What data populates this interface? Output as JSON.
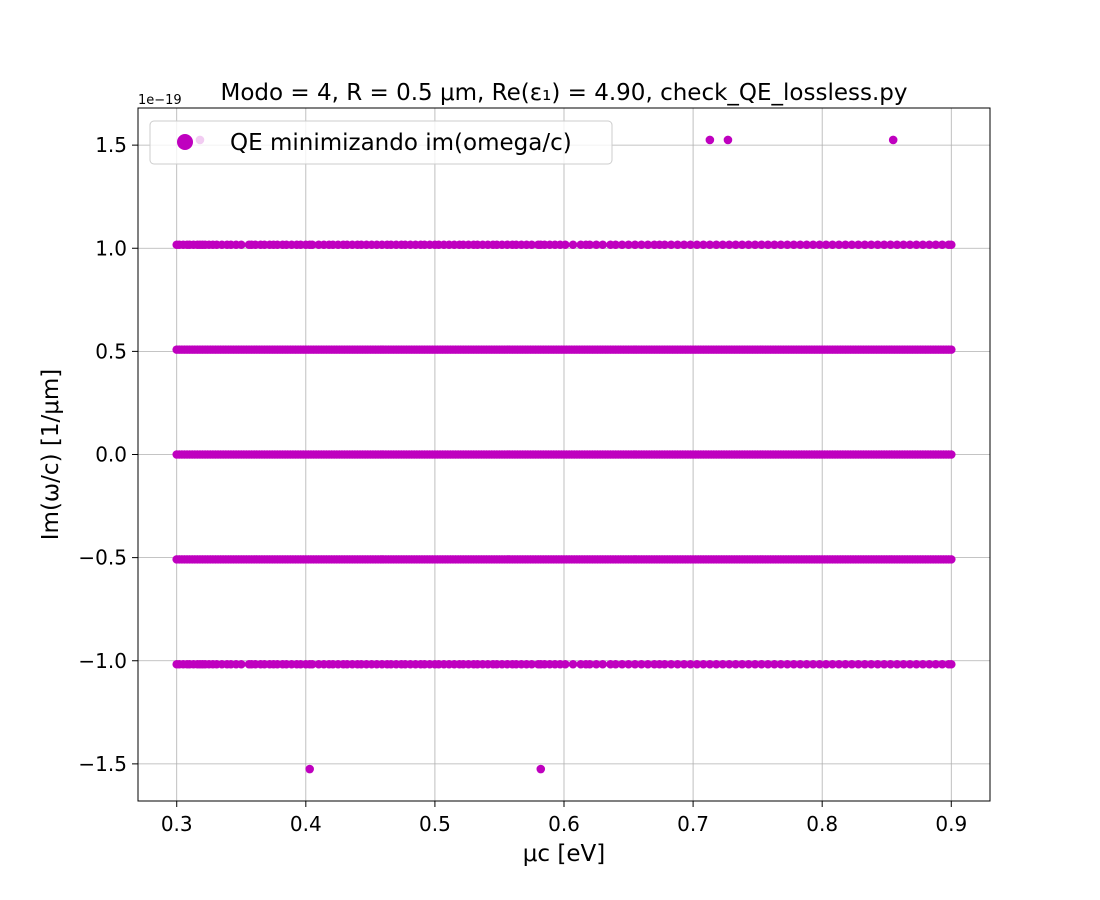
{
  "chart_data": {
    "type": "scatter",
    "title": "Modo = 4, R = 0.5 μm, Re(ε₁) = 4.90, check_QE_lossless.py",
    "xlabel": "μc [eV]",
    "ylabel": "Im(ω/c) [1/μm]",
    "y_offset_text": "1e−19",
    "xlim": [
      0.27,
      0.93
    ],
    "ylim": [
      -1.68,
      1.68
    ],
    "x_ticks": [
      0.3,
      0.4,
      0.5,
      0.6,
      0.7,
      0.8,
      0.9
    ],
    "x_tick_labels": [
      "0.3",
      "0.4",
      "0.5",
      "0.6",
      "0.7",
      "0.8",
      "0.9"
    ],
    "y_ticks": [
      -1.5,
      -1.0,
      -0.5,
      0.0,
      0.5,
      1.0,
      1.5
    ],
    "y_tick_labels": [
      "−1.5",
      "−1.0",
      "−0.5",
      "0.0",
      "0.5",
      "1.0",
      "1.5"
    ],
    "grid": true,
    "legend_position": "top-left",
    "color": "#bf00bf",
    "series": [
      {
        "name": "QE minimizando im(omega/c)",
        "bands": [
          {
            "y": 0.0,
            "x_from": 0.3,
            "x_to": 0.9,
            "continuous": true
          },
          {
            "y": 0.5085,
            "x_from": 0.3,
            "x_to": 0.9,
            "continuous": true
          },
          {
            "y": -0.5085,
            "x_from": 0.3,
            "x_to": 0.9,
            "continuous": true
          },
          {
            "y": 1.017,
            "x": [
              0.3,
              0.302,
              0.305,
              0.308,
              0.31,
              0.313,
              0.316,
              0.318,
              0.32,
              0.322,
              0.325,
              0.328,
              0.331,
              0.335,
              0.339,
              0.342,
              0.346,
              0.35,
              0.356,
              0.358,
              0.361,
              0.365,
              0.368,
              0.372,
              0.375,
              0.378,
              0.382,
              0.385,
              0.389,
              0.393,
              0.396,
              0.4,
              0.403,
              0.405,
              0.41,
              0.414,
              0.418,
              0.421,
              0.425,
              0.429,
              0.432,
              0.436,
              0.44,
              0.443,
              0.447,
              0.451,
              0.455,
              0.459,
              0.463,
              0.466,
              0.47,
              0.474,
              0.477,
              0.481,
              0.485,
              0.489,
              0.492,
              0.496,
              0.5,
              0.503,
              0.507,
              0.511,
              0.515,
              0.519,
              0.522,
              0.526,
              0.53,
              0.533,
              0.537,
              0.541,
              0.545,
              0.548,
              0.552,
              0.556,
              0.56,
              0.563,
              0.567,
              0.571,
              0.575,
              0.58,
              0.582,
              0.585,
              0.589,
              0.593,
              0.597,
              0.601,
              0.607,
              0.613,
              0.617,
              0.62,
              0.625,
              0.63,
              0.636,
              0.64,
              0.645,
              0.65,
              0.655,
              0.66,
              0.665,
              0.67,
              0.674,
              0.678,
              0.683,
              0.688,
              0.693,
              0.698,
              0.703,
              0.708,
              0.713,
              0.718,
              0.723,
              0.728,
              0.733,
              0.738,
              0.743,
              0.748,
              0.753,
              0.758,
              0.763,
              0.768,
              0.773,
              0.778,
              0.783,
              0.788,
              0.793,
              0.798,
              0.803,
              0.808,
              0.813,
              0.818,
              0.823,
              0.828,
              0.833,
              0.838,
              0.843,
              0.848,
              0.853,
              0.858,
              0.863,
              0.868,
              0.873,
              0.878,
              0.883,
              0.888,
              0.893,
              0.898,
              0.9
            ]
          },
          {
            "y": -1.017,
            "x": [
              0.3,
              0.302,
              0.305,
              0.308,
              0.31,
              0.313,
              0.316,
              0.318,
              0.32,
              0.322,
              0.325,
              0.328,
              0.331,
              0.335,
              0.339,
              0.342,
              0.346,
              0.35,
              0.356,
              0.358,
              0.361,
              0.365,
              0.368,
              0.372,
              0.375,
              0.378,
              0.382,
              0.385,
              0.389,
              0.393,
              0.396,
              0.4,
              0.403,
              0.405,
              0.41,
              0.414,
              0.418,
              0.421,
              0.425,
              0.429,
              0.432,
              0.436,
              0.44,
              0.443,
              0.447,
              0.451,
              0.455,
              0.459,
              0.463,
              0.466,
              0.47,
              0.474,
              0.477,
              0.481,
              0.485,
              0.489,
              0.492,
              0.496,
              0.5,
              0.503,
              0.507,
              0.511,
              0.515,
              0.519,
              0.522,
              0.526,
              0.53,
              0.533,
              0.537,
              0.541,
              0.545,
              0.548,
              0.552,
              0.556,
              0.56,
              0.563,
              0.567,
              0.571,
              0.575,
              0.58,
              0.582,
              0.585,
              0.589,
              0.593,
              0.597,
              0.601,
              0.607,
              0.613,
              0.617,
              0.62,
              0.625,
              0.63,
              0.636,
              0.64,
              0.645,
              0.65,
              0.655,
              0.66,
              0.665,
              0.67,
              0.674,
              0.678,
              0.683,
              0.688,
              0.693,
              0.698,
              0.703,
              0.708,
              0.713,
              0.718,
              0.723,
              0.728,
              0.733,
              0.738,
              0.743,
              0.748,
              0.753,
              0.758,
              0.763,
              0.768,
              0.773,
              0.778,
              0.783,
              0.788,
              0.793,
              0.798,
              0.803,
              0.808,
              0.813,
              0.818,
              0.823,
              0.828,
              0.833,
              0.838,
              0.843,
              0.848,
              0.853,
              0.858,
              0.863,
              0.868,
              0.873,
              0.878,
              0.883,
              0.888,
              0.893,
              0.898,
              0.9
            ]
          },
          {
            "y": 1.525,
            "x": [
              0.318,
              0.713,
              0.727,
              0.855
            ]
          },
          {
            "y": -1.525,
            "x": [
              0.403,
              0.582
            ]
          }
        ]
      }
    ]
  }
}
